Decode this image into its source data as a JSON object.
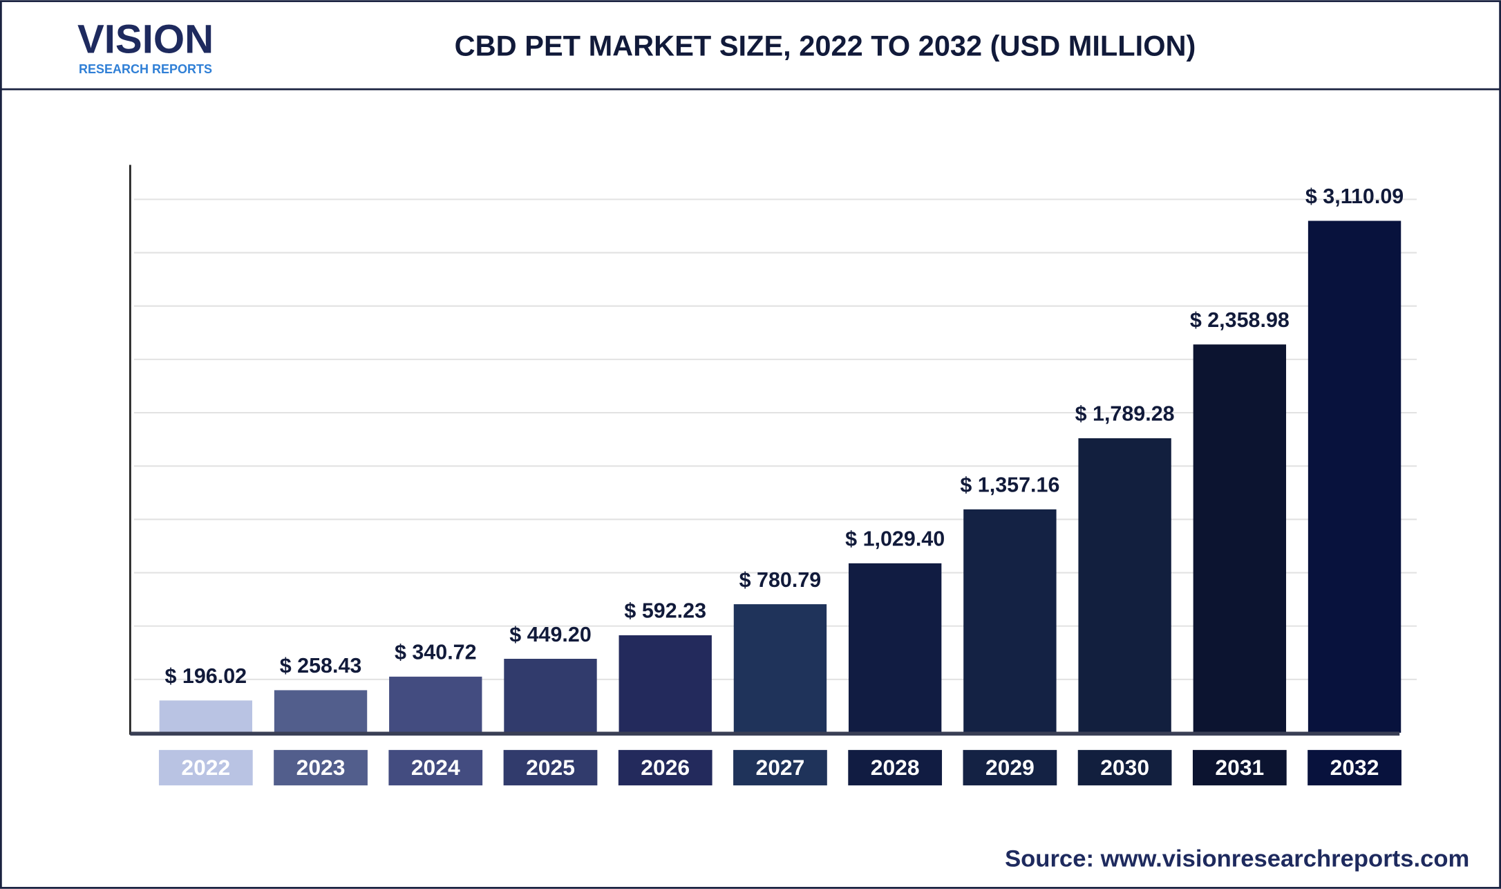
{
  "logo": {
    "name": "VISION",
    "tagline": "RESEARCH REPORTS"
  },
  "chart_data": {
    "type": "bar",
    "title": "CBD PET MARKET SIZE, 2022 TO 2032 (USD MILLION)",
    "categories": [
      "2022",
      "2023",
      "2024",
      "2025",
      "2026",
      "2027",
      "2028",
      "2029",
      "2030",
      "2031",
      "2032"
    ],
    "values": [
      196.02,
      258.43,
      340.72,
      449.2,
      592.23,
      780.79,
      1029.4,
      1357.16,
      1789.28,
      2358.98,
      3110.09
    ],
    "value_labels": [
      "$ 196.02",
      "$ 258.43",
      "$ 340.72",
      "$ 449.20",
      "$ 592.23",
      "$ 780.79",
      "$ 1,029.40",
      "$ 1,357.16",
      "$ 1,789.28",
      "$ 2,358.98",
      "$ 3,110.09"
    ],
    "colors": [
      "#b9c3e3",
      "#525e8c",
      "#434c80",
      "#313b6c",
      "#232a5c",
      "#1f335a",
      "#111c42",
      "#142244",
      "#121f3e",
      "#0c1430",
      "#08123d"
    ],
    "ylim": [
      0,
      3450
    ],
    "grid": true,
    "source": "Source: www.visionresearchreports.com"
  }
}
